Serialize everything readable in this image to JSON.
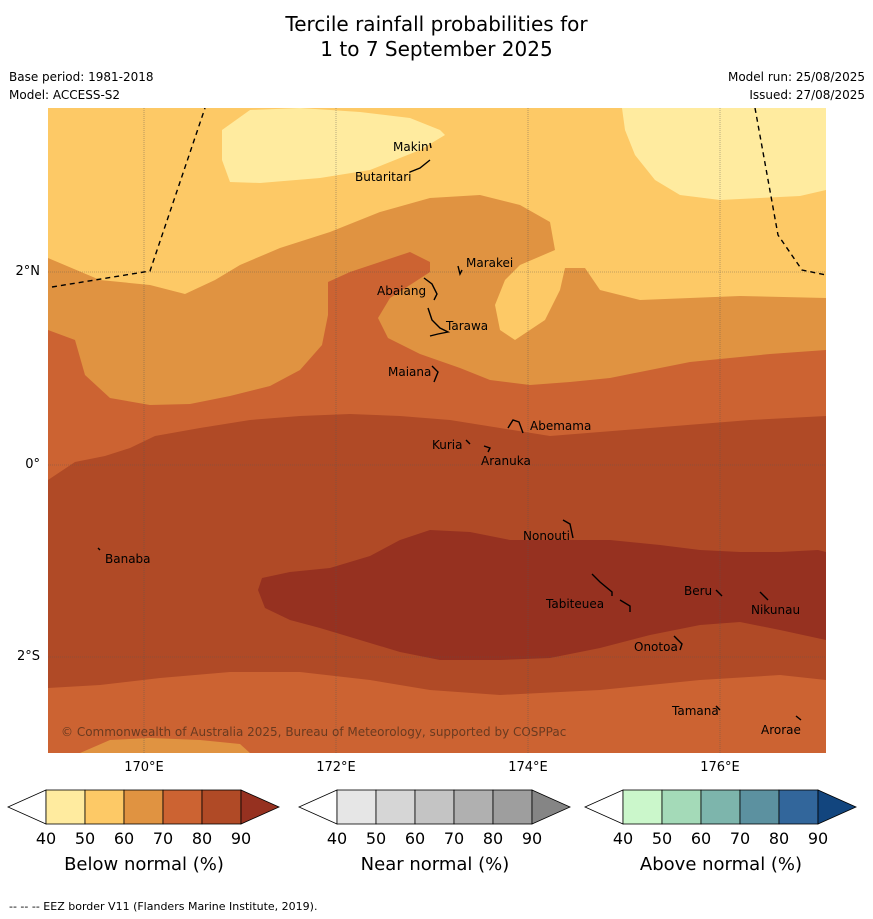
{
  "title_line1": "Tercile rainfall probabilities for",
  "title_line2": "1 to 7 September 2025",
  "meta_left": {
    "base_period": "Base period: 1981-2018",
    "model": "Model: ACCESS-S2"
  },
  "meta_right": {
    "model_run": "Model run: 25/08/2025",
    "issued": "Issued: 27/08/2025"
  },
  "x_ticks": [
    "170°E",
    "172°E",
    "174°E",
    "176°E"
  ],
  "y_ticks": [
    "2°N",
    "0°",
    "2°S"
  ],
  "places": [
    "Makin",
    "Butaritari",
    "Marakei",
    "Abaiang",
    "Tarawa",
    "Maiana",
    "Abemama",
    "Kuria",
    "Aranuka",
    "Nonouti",
    "Banaba",
    "Beru",
    "Tabiteuea",
    "Nikunau",
    "Onotoa",
    "Tamana",
    "Arorae"
  ],
  "copyright": "© Commonwealth of Australia 2025, Bureau of Meteorology, supported by COSPPac",
  "colorbars": {
    "ticks": [
      "40",
      "50",
      "60",
      "70",
      "80",
      "90"
    ],
    "below_title": "Below normal (%)",
    "near_title": "Near normal (%)",
    "above_title": "Above normal (%)",
    "below_colors": [
      "#ffffff",
      "#ffeb9f",
      "#fdc966",
      "#e09341",
      "#cc6332",
      "#b04a26",
      "#963120"
    ],
    "near_colors": [
      "#ffffff",
      "#e6e6e6",
      "#d6d6d6",
      "#c4c4c4",
      "#b0b0b0",
      "#9e9e9e",
      "#858585"
    ],
    "above_colors": [
      "#ffffff",
      "#cbf7cb",
      "#a4dab8",
      "#7db5ac",
      "#5c91a0",
      "#32669b",
      "#12457e"
    ]
  },
  "footer": "--  --  -- EEZ border V11 (Flanders Marine Institute, 2019)."
}
